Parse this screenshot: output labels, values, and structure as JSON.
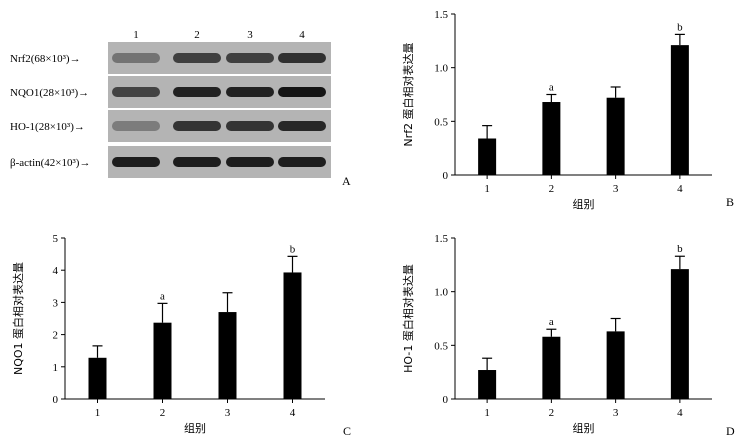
{
  "figure": {
    "panel_letters": [
      "A",
      "B",
      "C",
      "D"
    ]
  },
  "western_blot": {
    "panel_letter": "A",
    "lanes": [
      "1",
      "2",
      "3",
      "4"
    ],
    "arrow": "→",
    "proteins": [
      {
        "name": "Nrf2(68×10³)",
        "intensity": [
          0.45,
          0.72,
          0.72,
          0.8
        ]
      },
      {
        "name": "NQO1(28×10³)",
        "intensity": [
          0.7,
          0.88,
          0.88,
          0.95
        ]
      },
      {
        "name": "HO-1(28×10³)",
        "intensity": [
          0.4,
          0.78,
          0.78,
          0.85
        ]
      },
      {
        "name": "β-actin(42×10³)",
        "intensity": [
          0.9,
          0.9,
          0.9,
          0.9
        ]
      }
    ]
  },
  "chart_data": [
    {
      "type": "bar",
      "panel_letter": "B",
      "categories": [
        "1",
        "2",
        "3",
        "4"
      ],
      "values": [
        0.34,
        0.68,
        0.72,
        1.21
      ],
      "errors": [
        0.12,
        0.07,
        0.1,
        0.1
      ],
      "annotations": [
        "",
        "a",
        "",
        "b"
      ],
      "xlabel": "组别",
      "ylabel": "Nrf2 蛋白相对表达量",
      "ylim": [
        0,
        1.5
      ],
      "yticks": [
        0,
        0.5,
        1.0,
        1.5
      ],
      "ytick_labels": [
        "0",
        "0.5",
        "1.0",
        "1.5"
      ]
    },
    {
      "type": "bar",
      "panel_letter": "C",
      "categories": [
        "1",
        "2",
        "3",
        "4"
      ],
      "values": [
        1.28,
        2.37,
        2.7,
        3.93
      ],
      "errors": [
        0.37,
        0.6,
        0.6,
        0.5
      ],
      "annotations": [
        "",
        "a",
        "",
        "b"
      ],
      "xlabel": "组别",
      "ylabel": "NQO1 蛋白相对表达量",
      "ylim": [
        0,
        5
      ],
      "yticks": [
        0,
        1,
        2,
        3,
        4,
        5
      ],
      "ytick_labels": [
        "0",
        "1",
        "2",
        "3",
        "4",
        "5"
      ]
    },
    {
      "type": "bar",
      "panel_letter": "D",
      "categories": [
        "1",
        "2",
        "3",
        "4"
      ],
      "values": [
        0.27,
        0.58,
        0.63,
        1.21
      ],
      "errors": [
        0.11,
        0.07,
        0.12,
        0.12
      ],
      "annotations": [
        "",
        "a",
        "",
        "b"
      ],
      "xlabel": "组别",
      "ylabel": "HO-1 蛋白相对表达量",
      "ylim": [
        0,
        1.5
      ],
      "yticks": [
        0,
        0.5,
        1.0,
        1.5
      ],
      "ytick_labels": [
        "0",
        "0.5",
        "1.0",
        "1.5"
      ]
    }
  ]
}
